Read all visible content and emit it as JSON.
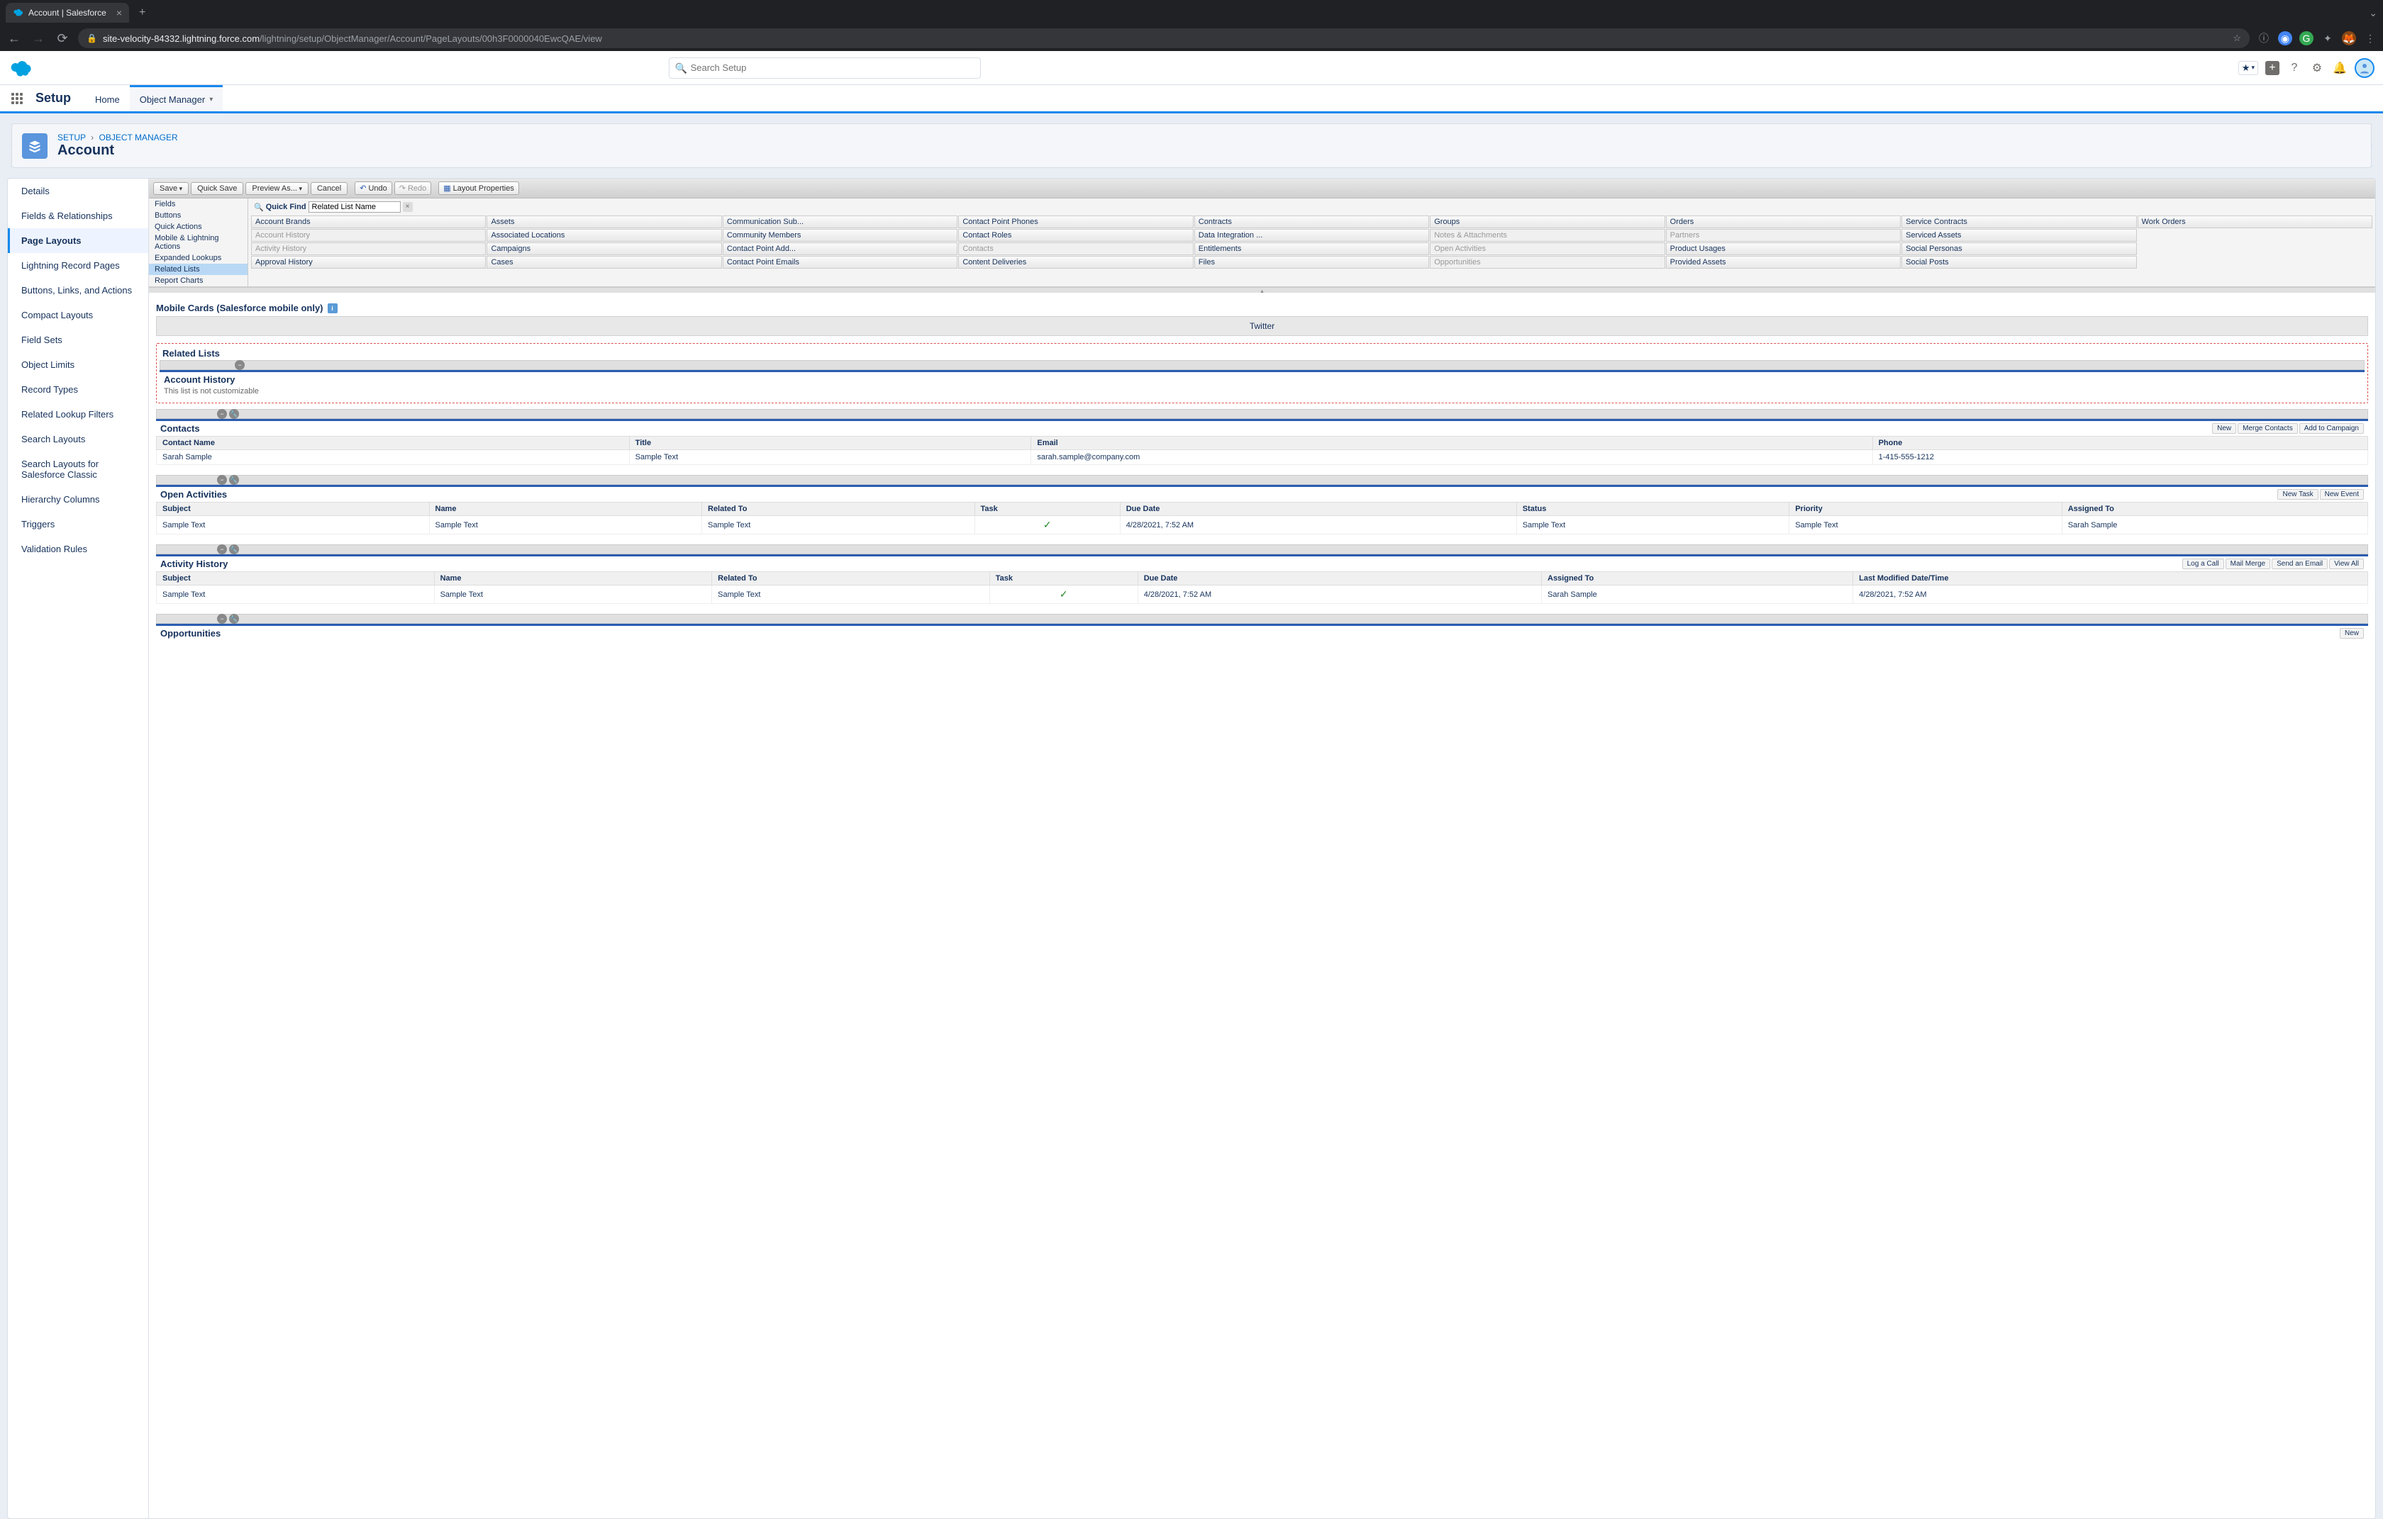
{
  "browser": {
    "tab_title": "Account | Salesforce",
    "url_domain": "site-velocity-84332.lightning.force.com",
    "url_path": "/lightning/setup/ObjectManager/Account/PageLayouts/00h3F0000040EwcQAE/view"
  },
  "header": {
    "search_placeholder": "Search Setup"
  },
  "nav": {
    "app": "Setup",
    "home": "Home",
    "object_manager": "Object Manager"
  },
  "banner": {
    "crumb_setup": "SETUP",
    "crumb_om": "OBJECT MANAGER",
    "title": "Account"
  },
  "sidebar": [
    "Details",
    "Fields & Relationships",
    "Page Layouts",
    "Lightning Record Pages",
    "Buttons, Links, and Actions",
    "Compact Layouts",
    "Field Sets",
    "Object Limits",
    "Record Types",
    "Related Lookup Filters",
    "Search Layouts",
    "Search Layouts for Salesforce Classic",
    "Hierarchy Columns",
    "Triggers",
    "Validation Rules"
  ],
  "sidebar_active_index": 2,
  "toolbar": {
    "save": "Save",
    "quick_save": "Quick Save",
    "preview_as": "Preview As...",
    "cancel": "Cancel",
    "undo": "Undo",
    "redo": "Redo",
    "layout_props": "Layout Properties"
  },
  "palette": {
    "categories": [
      "Fields",
      "Buttons",
      "Quick Actions",
      "Mobile & Lightning Actions",
      "Expanded Lookups",
      "Related Lists",
      "Report Charts"
    ],
    "selected_index": 5,
    "quick_find_label": "Quick Find",
    "quick_find_value": "Related List Name",
    "grid": [
      [
        "Account Brands",
        "Assets",
        "Communication Sub...",
        "Contact Point Phones",
        "Contracts",
        "Groups",
        "Orders",
        "Service Contracts",
        "Work Orders"
      ],
      [
        "Account History",
        "Associated Locations",
        "Community Members",
        "Contact Roles",
        "Data Integration ...",
        "Notes & Attachments",
        "Partners",
        "Serviced Assets",
        ""
      ],
      [
        "Activity History",
        "Campaigns",
        "Contact Point Add...",
        "Contacts",
        "Entitlements",
        "Open Activities",
        "Product Usages",
        "Social Personas",
        ""
      ],
      [
        "Approval History",
        "Cases",
        "Contact Point Emails",
        "Content Deliveries",
        "Files",
        "Opportunities",
        "Provided Assets",
        "Social Posts",
        ""
      ]
    ],
    "disabled_cells": [
      "Account History",
      "Activity History",
      "Contacts",
      "Notes & Attachments",
      "Open Activities",
      "Opportunities",
      "Partners"
    ]
  },
  "canvas": {
    "mobile_section": "Mobile Cards (Salesforce mobile only)",
    "mobile_card": "Twitter",
    "related_lists_title": "Related Lists",
    "account_history": {
      "title": "Account History",
      "note": "This list is not customizable"
    },
    "contacts": {
      "title": "Contacts",
      "actions": [
        "New",
        "Merge Contacts",
        "Add to Campaign"
      ],
      "headers": [
        "Contact Name",
        "Title",
        "Email",
        "Phone"
      ],
      "row": [
        "Sarah Sample",
        "Sample Text",
        "sarah.sample@company.com",
        "1-415-555-1212"
      ]
    },
    "open_activities": {
      "title": "Open Activities",
      "actions": [
        "New Task",
        "New Event"
      ],
      "headers": [
        "Subject",
        "Name",
        "Related To",
        "Task",
        "Due Date",
        "Status",
        "Priority",
        "Assigned To"
      ],
      "row": [
        "Sample Text",
        "Sample Text",
        "Sample Text",
        "✓",
        "4/28/2021, 7:52 AM",
        "Sample Text",
        "Sample Text",
        "Sarah Sample"
      ]
    },
    "activity_history": {
      "title": "Activity History",
      "actions": [
        "Log a Call",
        "Mail Merge",
        "Send an Email",
        "View All"
      ],
      "headers": [
        "Subject",
        "Name",
        "Related To",
        "Task",
        "Due Date",
        "Assigned To",
        "Last Modified Date/Time"
      ],
      "row": [
        "Sample Text",
        "Sample Text",
        "Sample Text",
        "✓",
        "4/28/2021, 7:52 AM",
        "Sarah Sample",
        "4/28/2021, 7:52 AM"
      ]
    },
    "opportunities": {
      "title": "Opportunities",
      "actions": [
        "New"
      ]
    }
  },
  "colors": {
    "sf_blue": "#1589ee",
    "banner_icon": "#5a95dd",
    "stripe": "#2a5db0",
    "dropzone": "#d9534f"
  }
}
